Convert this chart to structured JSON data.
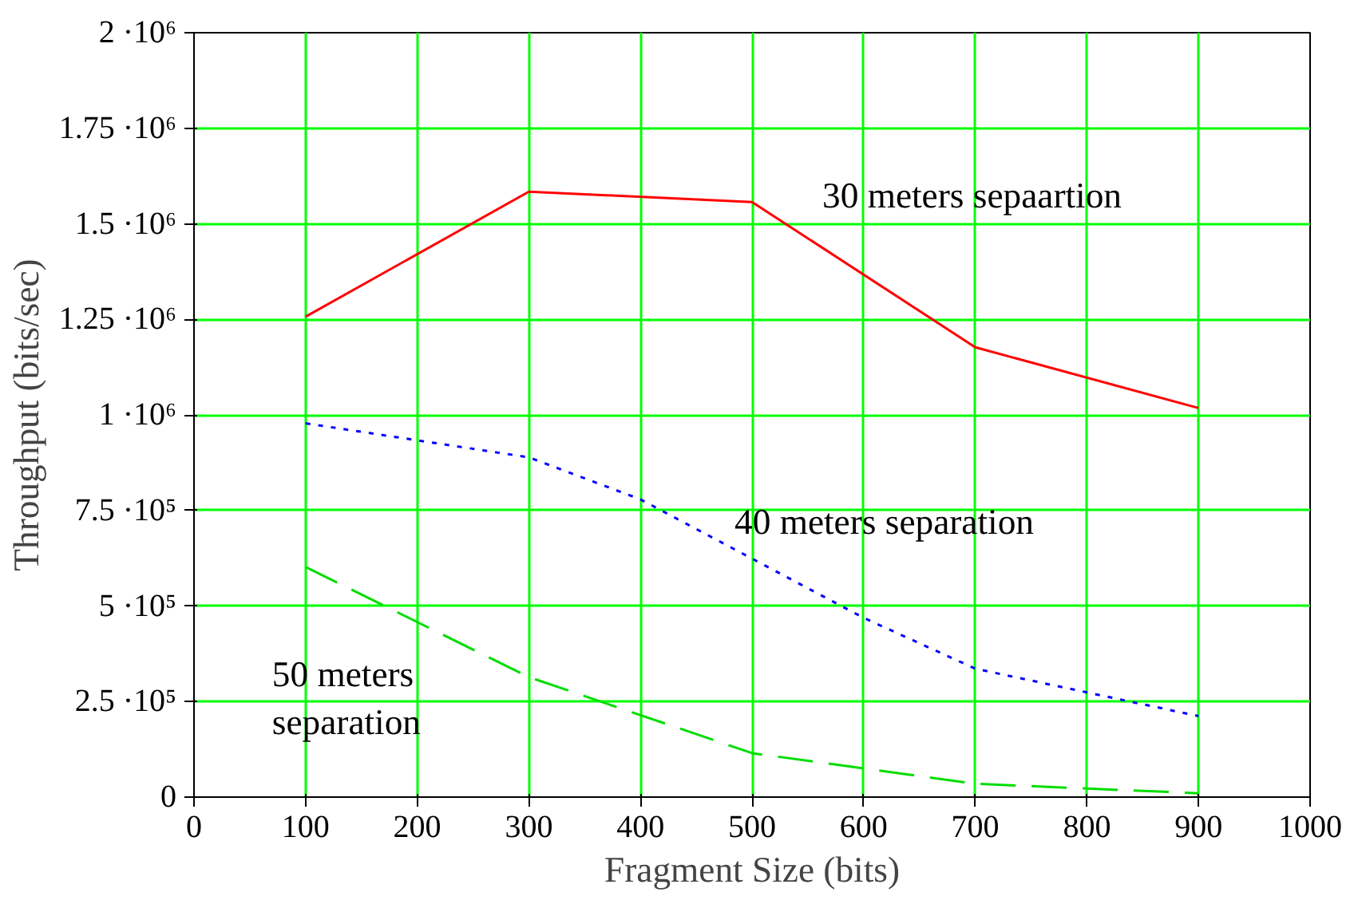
{
  "chart_data": {
    "type": "line",
    "xlabel": "Fragment Size (bits)",
    "ylabel": "Throughput (bits/sec)",
    "xlim": [
      0,
      1000
    ],
    "xticks": [
      0,
      100,
      200,
      300,
      400,
      500,
      600,
      700,
      800,
      900,
      1000
    ],
    "ylim": [
      0,
      2000000
    ],
    "yticks": [
      {
        "value": 0,
        "label": "0"
      },
      {
        "value": 250000,
        "label": "2.5 ·10⁵"
      },
      {
        "value": 500000,
        "label": "5 ·10⁵"
      },
      {
        "value": 750000,
        "label": "7.5 ·10⁵"
      },
      {
        "value": 1000000,
        "label": "1 ·10⁶"
      },
      {
        "value": 1250000,
        "label": "1.25 ·10⁶"
      },
      {
        "value": 1500000,
        "label": "1.5 ·10⁶"
      },
      {
        "value": 1750000,
        "label": "1.75 ·10⁶"
      },
      {
        "value": 2000000,
        "label": "2 ·10⁶"
      }
    ],
    "grid": true,
    "marker": "none",
    "series": [
      {
        "name": "30 meters sepaartion",
        "color": "#ff0000",
        "line_style": "solid",
        "x": [
          100,
          300,
          500,
          700,
          900
        ],
        "values": [
          1257000,
          1584000,
          1557000,
          1177000,
          1018000
        ]
      },
      {
        "name": "40 meters separation",
        "color": "#0000ff",
        "line_style": "dotted",
        "x": [
          100,
          300,
          400,
          500,
          600,
          700,
          800,
          900
        ],
        "values": [
          978000,
          889000,
          779000,
          624000,
          469000,
          336000,
          274000,
          212000
        ]
      },
      {
        "name": "50 meters\nseparation",
        "color": "#00dd00",
        "line_style": "dashed",
        "x": [
          100,
          300,
          500,
          700,
          900
        ],
        "values": [
          602000,
          314000,
          115000,
          35000,
          10000
        ]
      }
    ]
  }
}
